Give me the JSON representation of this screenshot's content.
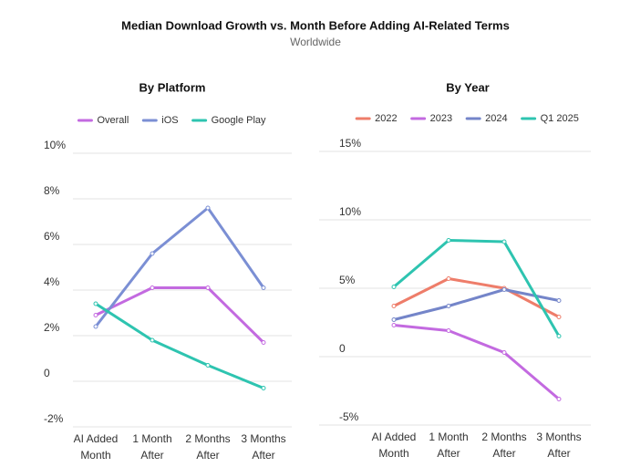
{
  "header": {
    "title": "Median Download Growth vs. Month Before Adding AI-Related Terms",
    "subtitle": "Worldwide"
  },
  "chart_data": [
    {
      "type": "line",
      "title": "By Platform",
      "categories": [
        "AI Added Month",
        "1 Month After",
        "2 Months After",
        "3 Months After"
      ],
      "series": [
        {
          "name": "Overall",
          "color": "#c36ae0",
          "values": [
            2.9,
            4.1,
            4.1,
            1.7
          ]
        },
        {
          "name": "iOS",
          "color": "#7b8fd4",
          "values": [
            2.4,
            5.6,
            7.6,
            4.1
          ]
        },
        {
          "name": "Google Play",
          "color": "#2ec4b0",
          "values": [
            3.4,
            1.8,
            0.7,
            -0.3
          ]
        }
      ],
      "ylim": [
        -2,
        10
      ],
      "yticks": [
        {
          "value": -2,
          "label": "-2%"
        },
        0,
        {
          "value": 2,
          "label": "2%"
        },
        {
          "value": 4,
          "label": "4%"
        },
        {
          "value": 6,
          "label": "6%"
        },
        {
          "value": 8,
          "label": "8%"
        },
        {
          "value": 10,
          "label": "10%"
        }
      ],
      "grid": true
    },
    {
      "type": "line",
      "title": "By Year",
      "categories": [
        "AI Added Month",
        "1 Month After",
        "2 Months After",
        "3 Months After"
      ],
      "series": [
        {
          "name": "2022",
          "color": "#ee7d6a",
          "values": [
            3.7,
            5.7,
            5.0,
            2.9
          ]
        },
        {
          "name": "2023",
          "color": "#c36ae0",
          "values": [
            2.3,
            1.9,
            0.3,
            -3.1
          ]
        },
        {
          "name": "2024",
          "color": "#7485c9",
          "values": [
            2.7,
            3.7,
            4.9,
            4.1
          ]
        },
        {
          "name": "Q1 2025",
          "color": "#2ec4b0",
          "values": [
            5.1,
            8.5,
            8.4,
            1.5
          ]
        }
      ],
      "ylim": [
        -5,
        15
      ],
      "yticks": [
        {
          "value": -5,
          "label": "-5%"
        },
        0,
        {
          "value": 5,
          "label": "5%"
        },
        {
          "value": 10,
          "label": "10%"
        },
        {
          "value": 15,
          "label": "15%"
        }
      ],
      "grid": true
    }
  ]
}
